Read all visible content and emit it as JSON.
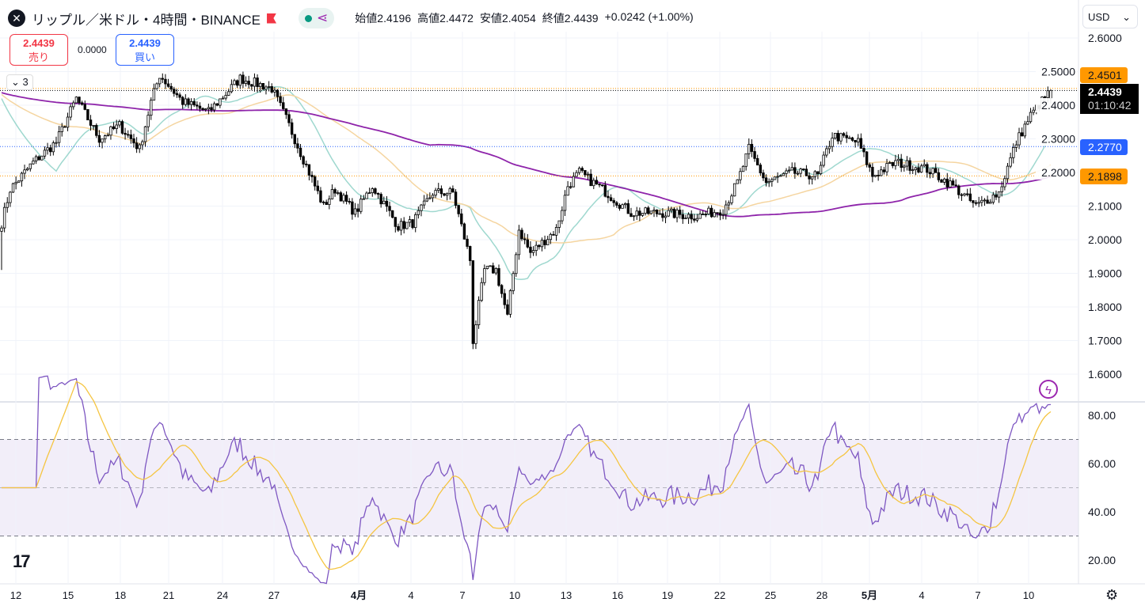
{
  "header": {
    "symbol": "リップル／米ドル・4時間・BINANCE",
    "open_label": "始値",
    "open": "2.4196",
    "high_label": "高値",
    "high": "2.4472",
    "low_label": "安値",
    "low": "2.4054",
    "close_label": "終値",
    "close": "2.4439",
    "change": "+0.0242 (+1.00%)"
  },
  "trade": {
    "sell_price": "2.4439",
    "sell_label": "売り",
    "spread": "0.0000",
    "buy_price": "2.4439",
    "buy_label": "買い"
  },
  "indicators_collapsed": "3",
  "currency": "USD",
  "price_tags": {
    "orange_top": "2.4501",
    "last": "2.4439",
    "countdown": "01:10:42",
    "blue": "2.2770",
    "orange_bottom": "2.1898"
  },
  "colors": {
    "up": "#ffffff",
    "down": "#000000",
    "ma_fast": "#9fd8cf",
    "ma_mid": "#f5d5a0",
    "ma_slow": "#8e24aa",
    "rsi": "#7e57c2",
    "rsi_ma": "#f5c542",
    "tag_orange": "#ff9800",
    "tag_blue": "#2962ff"
  },
  "chart_data": {
    "type": "candlestick",
    "timeframe": "4h",
    "price_axis": {
      "ticks": [
        "2.6000",
        "2.5000",
        "2.4000",
        "2.3000",
        "2.2000",
        "2.1000",
        "2.0000",
        "1.9000",
        "1.8000",
        "1.7000",
        "1.6000"
      ],
      "range": [
        1.6,
        2.6
      ]
    },
    "rsi_axis": {
      "ticks": [
        "80.00",
        "60.00",
        "40.00",
        "20.00"
      ],
      "range": [
        20,
        80
      ],
      "bands": [
        30,
        50,
        70
      ]
    },
    "x_ticks": [
      "12",
      "15",
      "18",
      "21",
      "24",
      "27",
      "4月",
      "4",
      "7",
      "10",
      "13",
      "16",
      "19",
      "22",
      "25",
      "28",
      "5月",
      "4",
      "7",
      "10"
    ],
    "close_keypoints": [
      [
        0,
        2.05
      ],
      [
        3,
        2.15
      ],
      [
        11,
        2.23
      ],
      [
        19,
        2.29
      ],
      [
        26,
        2.42
      ],
      [
        34,
        2.3
      ],
      [
        41,
        2.34
      ],
      [
        48,
        2.27
      ],
      [
        52,
        2.41
      ],
      [
        55,
        2.49
      ],
      [
        63,
        2.41
      ],
      [
        72,
        2.38
      ],
      [
        83,
        2.48
      ],
      [
        94,
        2.45
      ],
      [
        99,
        2.36
      ],
      [
        106,
        2.22
      ],
      [
        112,
        2.1
      ],
      [
        116,
        2.15
      ],
      [
        123,
        2.08
      ],
      [
        129,
        2.16
      ],
      [
        138,
        2.04
      ],
      [
        143,
        2.05
      ],
      [
        150,
        2.14
      ],
      [
        157,
        2.14
      ],
      [
        163,
        1.94
      ],
      [
        164,
        1.7
      ],
      [
        168,
        1.91
      ],
      [
        172,
        1.91
      ],
      [
        176,
        1.77
      ],
      [
        180,
        2.03
      ],
      [
        184,
        1.96
      ],
      [
        193,
        2.03
      ],
      [
        197,
        2.16
      ],
      [
        201,
        2.2
      ],
      [
        209,
        2.15
      ],
      [
        219,
        2.08
      ],
      [
        229,
        2.08
      ],
      [
        242,
        2.07
      ],
      [
        251,
        2.09
      ],
      [
        256,
        2.17
      ],
      [
        260,
        2.27
      ],
      [
        266,
        2.17
      ],
      [
        275,
        2.2
      ],
      [
        284,
        2.19
      ],
      [
        289,
        2.31
      ],
      [
        298,
        2.29
      ],
      [
        303,
        2.19
      ],
      [
        311,
        2.23
      ],
      [
        322,
        2.21
      ],
      [
        331,
        2.16
      ],
      [
        339,
        2.1
      ],
      [
        347,
        2.14
      ],
      [
        353,
        2.29
      ],
      [
        358,
        2.37
      ],
      [
        365,
        2.4439
      ]
    ]
  }
}
